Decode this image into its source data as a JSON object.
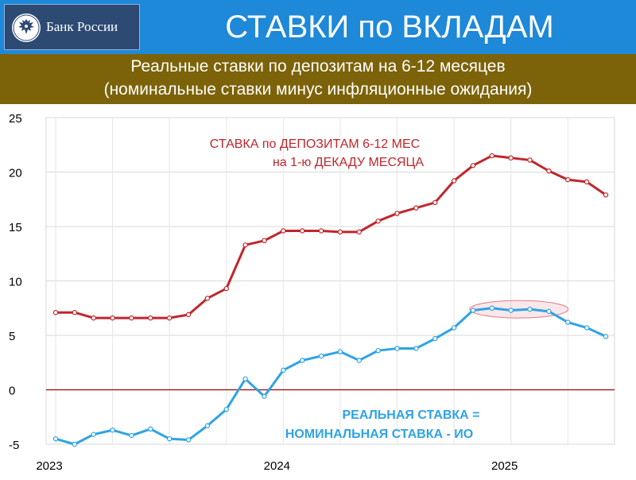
{
  "header": {
    "logo_text": "Банк России",
    "title": "СТАВКИ по ВКЛАДАМ"
  },
  "subtitle": {
    "line1": "Реальные ставки по депозитам на 6-12 месяцев",
    "line2": "(номинальные ставки минус инфляционные ожидания)"
  },
  "colors": {
    "header_bg": "#1e88d9",
    "subtitle_bg": "#7c6309",
    "nominal": "#c0262c",
    "real": "#2ea3e6",
    "zero_line": "#a00000"
  },
  "chart_data": {
    "type": "line",
    "x_labels": [
      "2023",
      "2024",
      "2025"
    ],
    "ylim": [
      -5,
      25
    ],
    "yticks": [
      "25",
      "20",
      "15",
      "10",
      "5",
      "0",
      "-5"
    ],
    "grid": true,
    "annotations": {
      "nominal_line1": "СТАВКА по ДЕПОЗИТАМ 6-12 МЕС",
      "nominal_line2": "на 1-ю ДЕКАДУ МЕСЯЦА",
      "real_line1": "РЕАЛЬНАЯ СТАВКА =",
      "real_line2": "НОМИНАЛЬНАЯ СТАВКА - ИО"
    },
    "series": [
      {
        "key": "nominal",
        "values": [
          7.1,
          7.1,
          6.6,
          6.6,
          6.6,
          6.6,
          6.6,
          6.9,
          8.4,
          9.3,
          13.3,
          13.7,
          14.6,
          14.6,
          14.6,
          14.5,
          14.5,
          15.5,
          16.2,
          16.7,
          17.2,
          19.2,
          20.6,
          21.5,
          21.3,
          21.1,
          20.1,
          19.3,
          19.1,
          17.9
        ]
      },
      {
        "key": "real",
        "values": [
          -4.5,
          -5.0,
          -4.1,
          -3.7,
          -4.2,
          -3.6,
          -4.5,
          -4.6,
          -3.3,
          -1.8,
          1.0,
          -0.6,
          1.8,
          2.7,
          3.1,
          3.5,
          2.7,
          3.6,
          3.8,
          3.8,
          4.7,
          5.7,
          7.3,
          7.5,
          7.3,
          7.4,
          7.2,
          6.2,
          5.7,
          4.9
        ]
      }
    ]
  }
}
